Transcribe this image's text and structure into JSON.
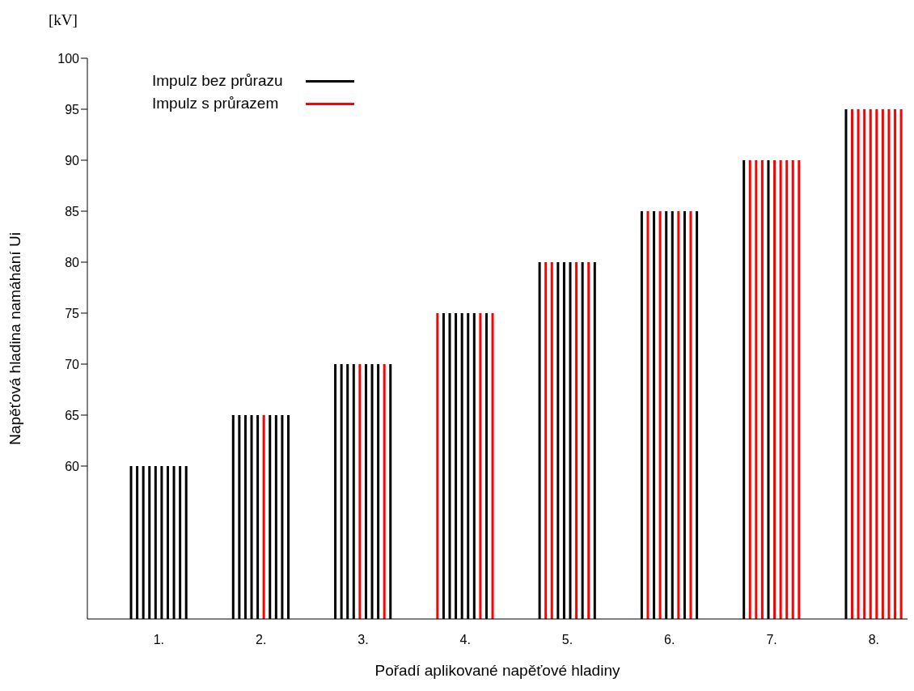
{
  "chart_data": {
    "type": "bar",
    "xlabel": "Pořadí aplikované napěťové hladiny",
    "ylabel": "Napěťová hladina namáhání Ui",
    "annotations": [
      "[kV]"
    ],
    "xlim": [
      0.3,
      8.33
    ],
    "xticks": [
      {
        "value": 1,
        "label": "1."
      },
      {
        "value": 2,
        "label": "2."
      },
      {
        "value": 3,
        "label": "3."
      },
      {
        "value": 4,
        "label": "4."
      },
      {
        "value": 5,
        "label": "5."
      },
      {
        "value": 6,
        "label": "6."
      },
      {
        "value": 7,
        "label": "7."
      },
      {
        "value": 8,
        "label": "8."
      }
    ],
    "ylim": [
      45,
      100
    ],
    "yticks": [
      60,
      65,
      70,
      75,
      80,
      85,
      90,
      95,
      100
    ],
    "legend": "top left",
    "grid": false,
    "series": [
      {
        "name": "Impulz bez průrazu",
        "color": "#000000",
        "x": [
          0.73,
          0.79,
          0.85,
          0.91,
          0.97,
          1.03,
          1.09,
          1.15,
          1.21,
          1.27,
          1.73,
          1.79,
          1.85,
          1.91,
          1.97,
          2.09,
          2.15,
          2.21,
          2.27,
          2.73,
          2.79,
          2.85,
          2.91,
          3.03,
          3.09,
          3.15,
          3.27,
          3.79,
          3.85,
          3.91,
          3.97,
          4.03,
          4.09,
          4.21,
          4.73,
          4.91,
          4.97,
          5.03,
          5.15,
          5.27,
          5.73,
          5.85,
          5.97,
          6.03,
          6.15,
          6.27,
          6.73,
          6.97,
          7.73
        ],
        "values": [
          60,
          60,
          60,
          60,
          60,
          60,
          60,
          60,
          60,
          60,
          65,
          65,
          65,
          65,
          65,
          65,
          65,
          65,
          65,
          70,
          70,
          70,
          70,
          70,
          70,
          70,
          70,
          75,
          75,
          75,
          75,
          75,
          75,
          75,
          80,
          80,
          80,
          80,
          80,
          80,
          85,
          85,
          85,
          85,
          85,
          85,
          90,
          90,
          95
        ]
      },
      {
        "name": "Impulz s průrazem",
        "color": "#ff0000",
        "x": [
          2.03,
          2.97,
          3.21,
          3.73,
          4.15,
          4.27,
          4.79,
          4.85,
          5.09,
          5.21,
          5.79,
          5.91,
          6.09,
          6.21,
          6.79,
          6.85,
          6.91,
          7.03,
          7.09,
          7.15,
          7.21,
          7.27,
          7.79,
          7.85,
          7.91,
          7.97,
          8.03,
          8.09,
          8.15,
          8.21,
          8.27
        ],
        "values": [
          65,
          70,
          70,
          75,
          75,
          75,
          80,
          80,
          80,
          80,
          85,
          85,
          85,
          85,
          90,
          90,
          90,
          90,
          90,
          90,
          90,
          90,
          95,
          95,
          95,
          95,
          95,
          95,
          95,
          95,
          95
        ]
      }
    ]
  }
}
